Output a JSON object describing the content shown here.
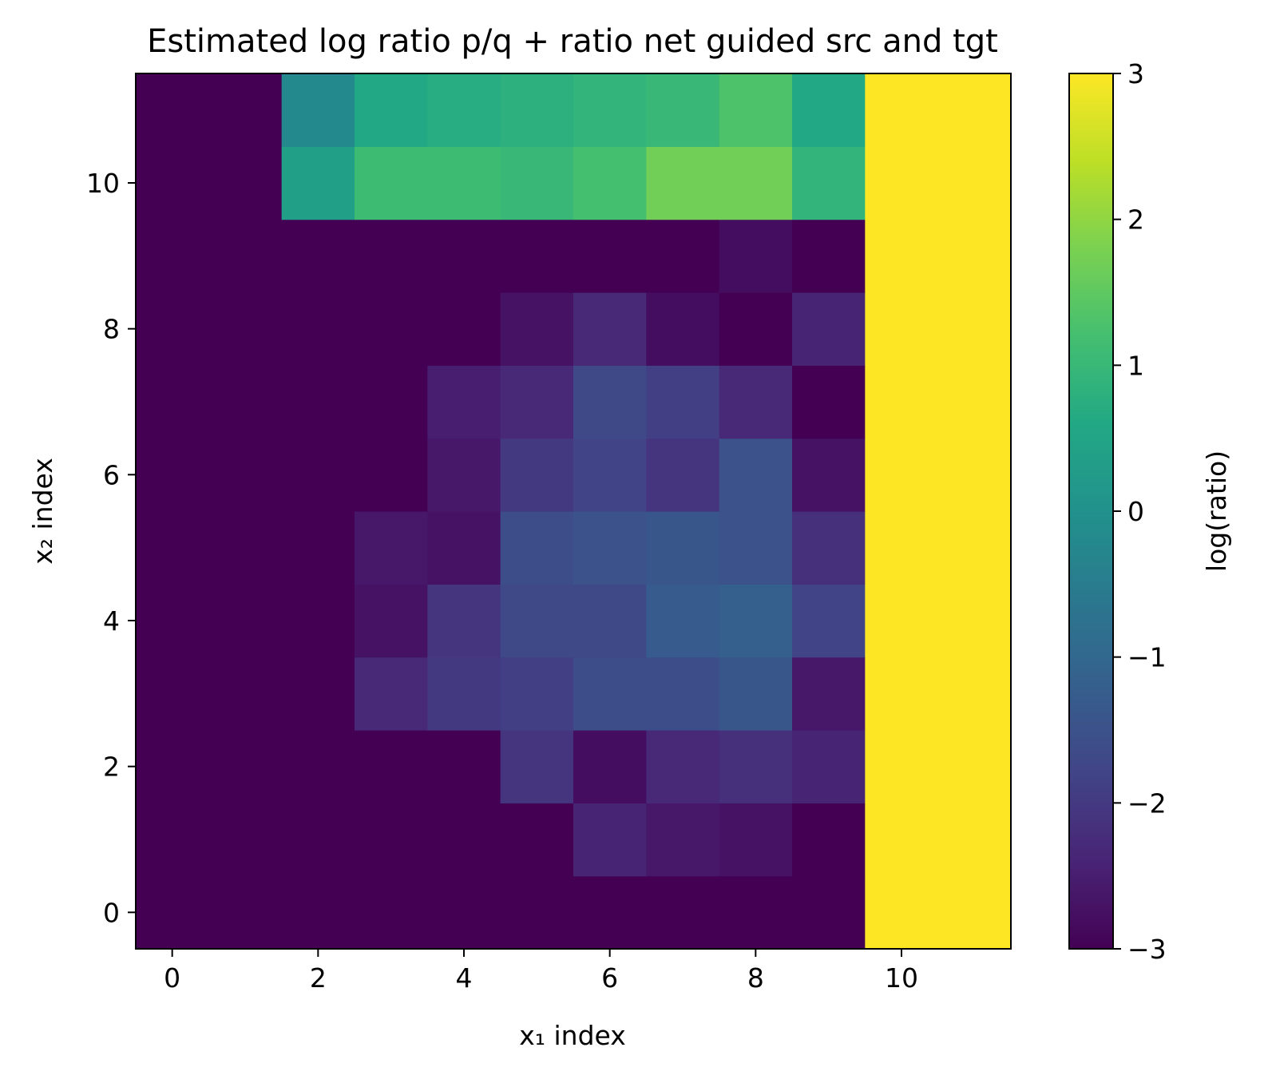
{
  "chart_data": {
    "type": "heatmap",
    "title": "Estimated log ratio p/q + ratio net guided src and tgt",
    "xlabel": "x₁ index",
    "ylabel": "x₂ index",
    "x": [
      0,
      1,
      2,
      3,
      4,
      5,
      6,
      7,
      8,
      9,
      10,
      11
    ],
    "y": [
      0,
      1,
      2,
      3,
      4,
      5,
      6,
      7,
      8,
      9,
      10,
      11
    ],
    "xlim": [
      -0.5,
      11.5
    ],
    "ylim": [
      -0.5,
      11.5
    ],
    "xticks": [
      0,
      2,
      4,
      6,
      8,
      10
    ],
    "yticks": [
      0,
      2,
      4,
      6,
      8,
      10
    ],
    "colormap": "viridis",
    "color_range": [
      -3,
      3
    ],
    "colorbar": {
      "label": "log(ratio)",
      "ticks": [
        3,
        2,
        1,
        0,
        -1,
        -2,
        -3
      ],
      "tick_labels": [
        "3",
        "2",
        "1",
        "0",
        "−1",
        "−2",
        "−3"
      ]
    },
    "grid": false,
    "values_by_row_from_y0": [
      [
        -3,
        -3,
        -3,
        -3,
        -3,
        -3,
        -3,
        -3,
        -3,
        -3,
        3,
        3
      ],
      [
        -3,
        -3,
        -3,
        -3,
        -3,
        -3,
        -2.4,
        -2.6,
        -2.7,
        -3,
        3,
        3
      ],
      [
        -3,
        -3,
        -3,
        -3,
        -3,
        -2.1,
        -2.8,
        -2.3,
        -2.2,
        -2.4,
        3,
        3
      ],
      [
        -3,
        -3,
        -3,
        -2.3,
        -2.0,
        -1.9,
        -1.6,
        -1.6,
        -1.4,
        -2.6,
        3,
        3
      ],
      [
        -3,
        -3,
        -3,
        -2.7,
        -2.1,
        -1.7,
        -1.7,
        -1.3,
        -1.2,
        -1.8,
        3,
        3
      ],
      [
        -3,
        -3,
        -3,
        -2.6,
        -2.7,
        -1.6,
        -1.5,
        -1.4,
        -1.5,
        -2.2,
        3,
        3
      ],
      [
        -3,
        -3,
        -3,
        -3,
        -2.6,
        -2.0,
        -1.8,
        -2.1,
        -1.5,
        -2.7,
        3,
        3
      ],
      [
        -3,
        -3,
        -3,
        -3,
        -2.5,
        -2.3,
        -1.7,
        -1.9,
        -2.3,
        -3,
        3,
        3
      ],
      [
        -3,
        -3,
        -3,
        -3,
        -3,
        -2.7,
        -2.3,
        -2.8,
        -3,
        -2.4,
        3,
        3
      ],
      [
        -3,
        -3,
        -3,
        -3,
        -3,
        -3,
        -3,
        -3,
        -2.8,
        -3,
        3,
        3
      ],
      [
        -3,
        -3,
        0.4,
        1.1,
        1.1,
        1.0,
        1.2,
        1.7,
        1.7,
        0.9,
        3,
        3
      ],
      [
        -3,
        -3,
        -0.2,
        0.6,
        0.7,
        0.8,
        0.9,
        1.0,
        1.3,
        0.6,
        3,
        3
      ]
    ]
  }
}
